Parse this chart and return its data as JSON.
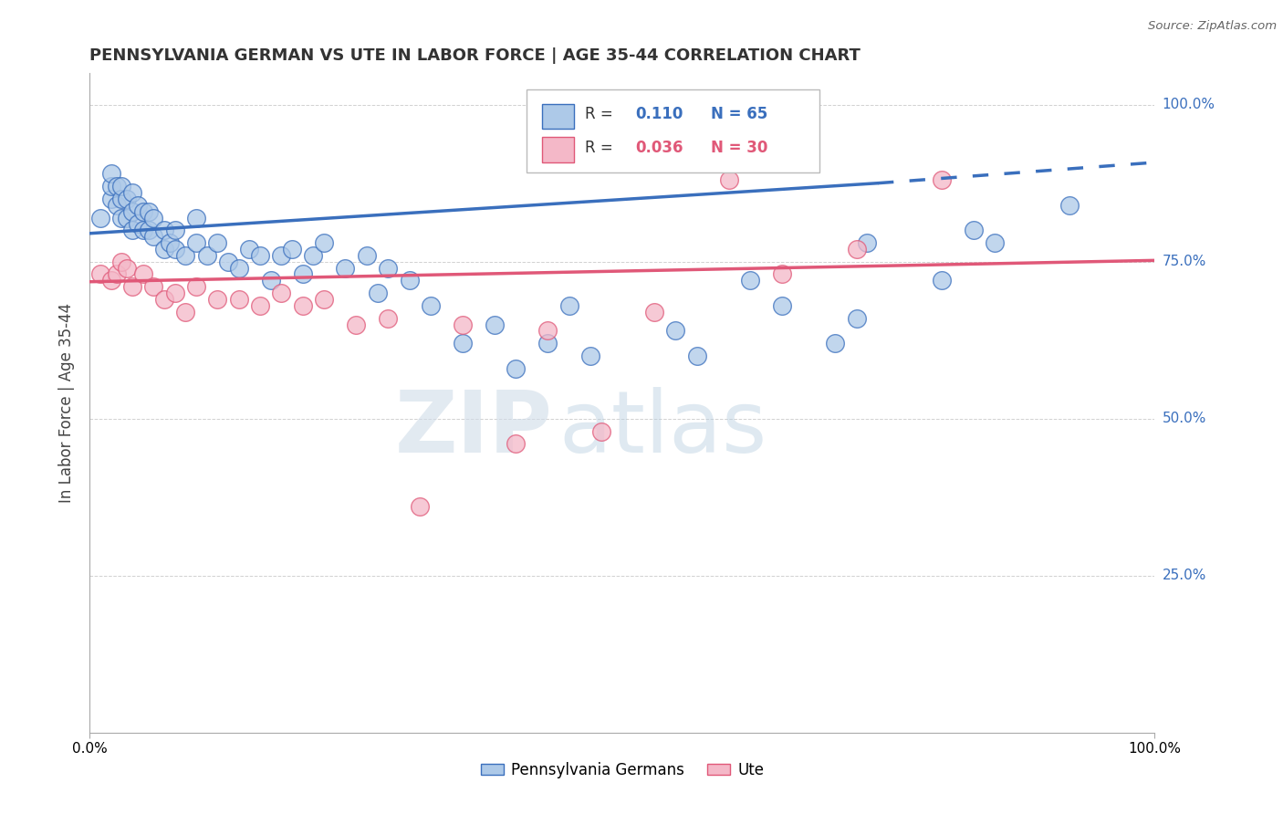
{
  "title": "PENNSYLVANIA GERMAN VS UTE IN LABOR FORCE | AGE 35-44 CORRELATION CHART",
  "source": "Source: ZipAtlas.com",
  "ylabel": "In Labor Force | Age 35-44",
  "xlim": [
    0.0,
    1.0
  ],
  "ylim": [
    0.0,
    1.05
  ],
  "blue_color": "#adc9e8",
  "pink_color": "#f4b8c8",
  "blue_line_color": "#3a6fbd",
  "pink_line_color": "#e05878",
  "blue_scatter_x": [
    0.01,
    0.02,
    0.02,
    0.02,
    0.025,
    0.025,
    0.03,
    0.03,
    0.03,
    0.035,
    0.035,
    0.04,
    0.04,
    0.04,
    0.045,
    0.045,
    0.05,
    0.05,
    0.055,
    0.055,
    0.06,
    0.06,
    0.07,
    0.07,
    0.075,
    0.08,
    0.08,
    0.09,
    0.1,
    0.1,
    0.11,
    0.12,
    0.13,
    0.14,
    0.15,
    0.16,
    0.17,
    0.18,
    0.19,
    0.2,
    0.21,
    0.22,
    0.24,
    0.26,
    0.27,
    0.28,
    0.3,
    0.32,
    0.35,
    0.38,
    0.4,
    0.43,
    0.45,
    0.47,
    0.55,
    0.57,
    0.62,
    0.65,
    0.7,
    0.72,
    0.73,
    0.8,
    0.83,
    0.85,
    0.92
  ],
  "blue_scatter_y": [
    0.82,
    0.85,
    0.87,
    0.89,
    0.84,
    0.87,
    0.82,
    0.85,
    0.87,
    0.82,
    0.85,
    0.8,
    0.83,
    0.86,
    0.81,
    0.84,
    0.8,
    0.83,
    0.8,
    0.83,
    0.79,
    0.82,
    0.77,
    0.8,
    0.78,
    0.77,
    0.8,
    0.76,
    0.78,
    0.82,
    0.76,
    0.78,
    0.75,
    0.74,
    0.77,
    0.76,
    0.72,
    0.76,
    0.77,
    0.73,
    0.76,
    0.78,
    0.74,
    0.76,
    0.7,
    0.74,
    0.72,
    0.68,
    0.62,
    0.65,
    0.58,
    0.62,
    0.68,
    0.6,
    0.64,
    0.6,
    0.72,
    0.68,
    0.62,
    0.66,
    0.78,
    0.72,
    0.8,
    0.78,
    0.84
  ],
  "pink_scatter_x": [
    0.01,
    0.02,
    0.025,
    0.03,
    0.035,
    0.04,
    0.05,
    0.06,
    0.07,
    0.08,
    0.09,
    0.1,
    0.12,
    0.14,
    0.16,
    0.18,
    0.2,
    0.22,
    0.25,
    0.28,
    0.31,
    0.35,
    0.4,
    0.43,
    0.48,
    0.53,
    0.6,
    0.65,
    0.72,
    0.8
  ],
  "pink_scatter_y": [
    0.73,
    0.72,
    0.73,
    0.75,
    0.74,
    0.71,
    0.73,
    0.71,
    0.69,
    0.7,
    0.67,
    0.71,
    0.69,
    0.69,
    0.68,
    0.7,
    0.68,
    0.69,
    0.65,
    0.66,
    0.36,
    0.65,
    0.46,
    0.64,
    0.48,
    0.67,
    0.88,
    0.73,
    0.77,
    0.88
  ],
  "background_color": "#ffffff",
  "grid_color": "#cccccc",
  "watermark_zip": "ZIP",
  "watermark_atlas": "atlas"
}
